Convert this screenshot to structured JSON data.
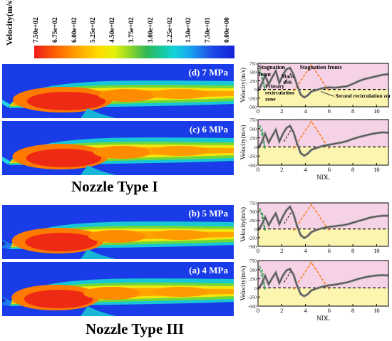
{
  "colorbar": {
    "title": "Velocity(m/s)",
    "ticks": [
      "7.50e+02",
      "6.75e+02",
      "6.00e+02",
      "5.25e+02",
      "4.50e+02",
      "3.75e+02",
      "3.00e+02",
      "2.25e+02",
      "1.50e+02",
      "7.50e+01",
      "0.00e+00"
    ]
  },
  "fields": [
    {
      "label": "(d) 7 MPa",
      "nozzle": "cyan"
    },
    {
      "label": "(c) 6 MPa",
      "nozzle": "cyan"
    },
    {
      "label": "(b) 5 MPa",
      "nozzle": "blue"
    },
    {
      "label": "(a) 4 MPa",
      "nozzle": "blue"
    }
  ],
  "nozzle_titles": [
    "Nozzle Type I",
    "Nozzle Type III"
  ],
  "annotations": {
    "stagnation_front": "Stagnation front",
    "stagnation_fronts": "Stagnation fronts",
    "primary_zone": "Primary recirculation zone",
    "mach_disk": "Mach disk",
    "second_zone": "Second recirculation zone"
  },
  "chart_data": [
    {
      "type": "line",
      "panel": "(d) 7 MPa",
      "xlabel": "",
      "ylabel": "Velocity(m/s)",
      "xlim": [
        0,
        11
      ],
      "ylim": [
        -500,
        750
      ],
      "yticks": [
        -500,
        -250,
        0,
        250,
        500,
        750
      ],
      "xticks": [
        0,
        2,
        4,
        6,
        8,
        10
      ],
      "x": [
        0,
        0.3,
        0.6,
        0.9,
        1.2,
        1.5,
        1.8,
        2.1,
        2.4,
        2.7,
        3.0,
        3.3,
        3.6,
        3.9,
        4.2,
        4.5,
        5.0,
        5.5,
        6.0,
        6.5,
        7.0,
        7.5,
        8.0,
        8.5,
        9.0,
        9.5,
        10.0,
        10.5,
        11.0
      ],
      "y": [
        -50,
        150,
        400,
        150,
        350,
        530,
        180,
        420,
        580,
        620,
        430,
        120,
        -150,
        -230,
        -170,
        -60,
        -10,
        40,
        60,
        50,
        70,
        90,
        160,
        240,
        300,
        340,
        380,
        420,
        440
      ]
    },
    {
      "type": "line",
      "panel": "(c) 6 MPa",
      "xlabel": "NDL",
      "ylabel": "Velocity(m/s)",
      "xlim": [
        0,
        11
      ],
      "ylim": [
        -500,
        750
      ],
      "yticks": [
        -500,
        -250,
        0,
        250,
        500,
        750
      ],
      "xticks": [
        0,
        2,
        4,
        6,
        8,
        10
      ],
      "x": [
        0,
        0.3,
        0.6,
        0.9,
        1.2,
        1.5,
        1.8,
        2.1,
        2.4,
        2.7,
        3.0,
        3.3,
        3.6,
        3.9,
        4.2,
        4.5,
        5.0,
        5.5,
        6.0,
        6.5,
        7.0,
        7.5,
        8.0,
        8.5,
        9.0,
        9.5,
        10.0,
        10.5,
        11.0
      ],
      "y": [
        -40,
        120,
        360,
        120,
        300,
        470,
        150,
        360,
        520,
        580,
        400,
        90,
        -170,
        -240,
        -180,
        -80,
        -20,
        30,
        60,
        90,
        120,
        160,
        220,
        270,
        310,
        350,
        380,
        400,
        390
      ]
    },
    {
      "type": "line",
      "panel": "(b) 5 MPa",
      "xlabel": "",
      "ylabel": "Velocity(m/s)",
      "xlim": [
        0,
        11
      ],
      "ylim": [
        -500,
        750
      ],
      "yticks": [
        -500,
        -250,
        0,
        250,
        500,
        750
      ],
      "xticks": [
        0,
        2,
        4,
        6,
        8,
        10
      ],
      "x": [
        0,
        0.3,
        0.6,
        0.9,
        1.2,
        1.5,
        1.8,
        2.1,
        2.4,
        2.7,
        3.0,
        3.3,
        3.6,
        3.9,
        4.2,
        4.5,
        5.0,
        5.5,
        6.0,
        6.5,
        7.0,
        7.5,
        8.0,
        8.5,
        9.0,
        9.5,
        10.0,
        10.5,
        11.0
      ],
      "y": [
        -40,
        110,
        340,
        110,
        290,
        450,
        140,
        360,
        540,
        640,
        420,
        80,
        -180,
        -260,
        -200,
        -90,
        -20,
        30,
        60,
        80,
        100,
        130,
        180,
        230,
        280,
        330,
        360,
        380,
        380
      ]
    },
    {
      "type": "line",
      "panel": "(a) 4 MPa",
      "xlabel": "NDL",
      "ylabel": "Velocity(m/s)",
      "xlim": [
        0,
        11
      ],
      "ylim": [
        -500,
        750
      ],
      "yticks": [
        -500,
        -250,
        0,
        250,
        500,
        750
      ],
      "xticks": [
        0,
        2,
        4,
        6,
        8,
        10
      ],
      "x": [
        0,
        0.3,
        0.6,
        0.9,
        1.2,
        1.5,
        1.8,
        2.1,
        2.4,
        2.7,
        3.0,
        3.3,
        3.6,
        3.9,
        4.2,
        4.5,
        5.0,
        5.5,
        6.0,
        6.5,
        7.0,
        7.5,
        8.0,
        8.5,
        9.0,
        9.5,
        10.0,
        10.5,
        11.0
      ],
      "y": [
        -40,
        100,
        330,
        100,
        270,
        420,
        130,
        340,
        480,
        520,
        360,
        60,
        -170,
        -230,
        -170,
        -70,
        -10,
        40,
        70,
        90,
        120,
        150,
        200,
        250,
        290,
        320,
        340,
        350,
        340
      ]
    }
  ],
  "colors": {
    "curve": "#888888",
    "green_arrow": "#22a84a",
    "orange_arrow": "#ff7a1a",
    "bg_pink": "#f6d2e6",
    "bg_yellow": "#fbf5b0"
  }
}
